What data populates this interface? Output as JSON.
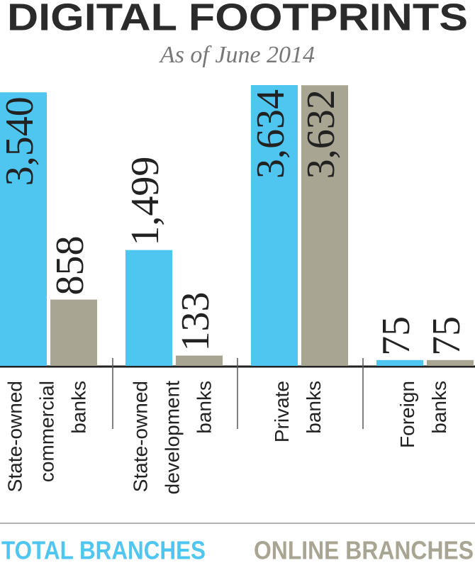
{
  "chart_data": {
    "type": "bar",
    "title": "DIGITAL FOOTPRINTS",
    "subtitle": "As of June 2014",
    "categories": [
      [
        "State-owned",
        "commercial",
        "banks"
      ],
      [
        "State-owned",
        "development",
        "banks"
      ],
      [
        "Private",
        "banks"
      ],
      [
        "Foreign",
        "banks"
      ]
    ],
    "series": [
      {
        "name": "TOTAL BRANCHES",
        "color": "#4ec6f0",
        "values": [
          3540,
          1499,
          3634,
          75
        ],
        "value_labels": [
          "3,540",
          "1,499",
          "3,634",
          "75"
        ]
      },
      {
        "name": "ONLINE BRANCHES",
        "color": "#a9a593",
        "values": [
          858,
          133,
          3632,
          75
        ],
        "value_labels": [
          "858",
          "133",
          "3,632",
          "75"
        ]
      }
    ]
  }
}
